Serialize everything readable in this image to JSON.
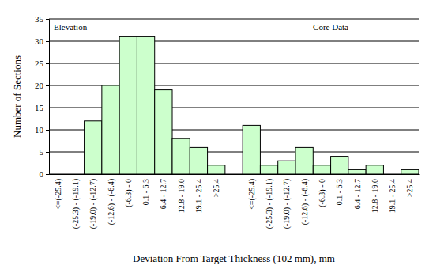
{
  "chart_data": {
    "type": "bar",
    "x_label": "Deviation From Target Thickness (102 mm), mm",
    "y_label": "Number of Sections",
    "annotations": [
      "Elevation",
      "Core Data"
    ],
    "categories": [
      "<=(-25.4)",
      "(-25.3) - (-19.1)",
      "(-19.0) - (-12.7)",
      "(-12.6) - (-6.4)",
      "(-6.3) - 0",
      "0.1 - 6.3",
      "6.4 - 12.7",
      "12.8 - 19.0",
      "19.1 - 25.4",
      ">25.4",
      null,
      "<=(-25.4)",
      "(-25.3) - (-19.1)",
      "(-19.0) - (-12.7)",
      "(-12.6) - (-6.4)",
      "(-6.3) - 0",
      "0.1 - 6.3",
      "6.4 - 12.7",
      "12.8 - 19.0",
      "19.1 - 25.4",
      ">25.4"
    ],
    "values": [
      0,
      0,
      12,
      20,
      31,
      31,
      19,
      8,
      6,
      2,
      null,
      11,
      2,
      3,
      6,
      2,
      4,
      1,
      2,
      0,
      1
    ],
    "color": "#ccffcc",
    "ylim": [
      0,
      35
    ],
    "yticks": [
      0,
      5,
      10,
      15,
      20,
      25,
      30,
      35
    ],
    "grid": true
  }
}
